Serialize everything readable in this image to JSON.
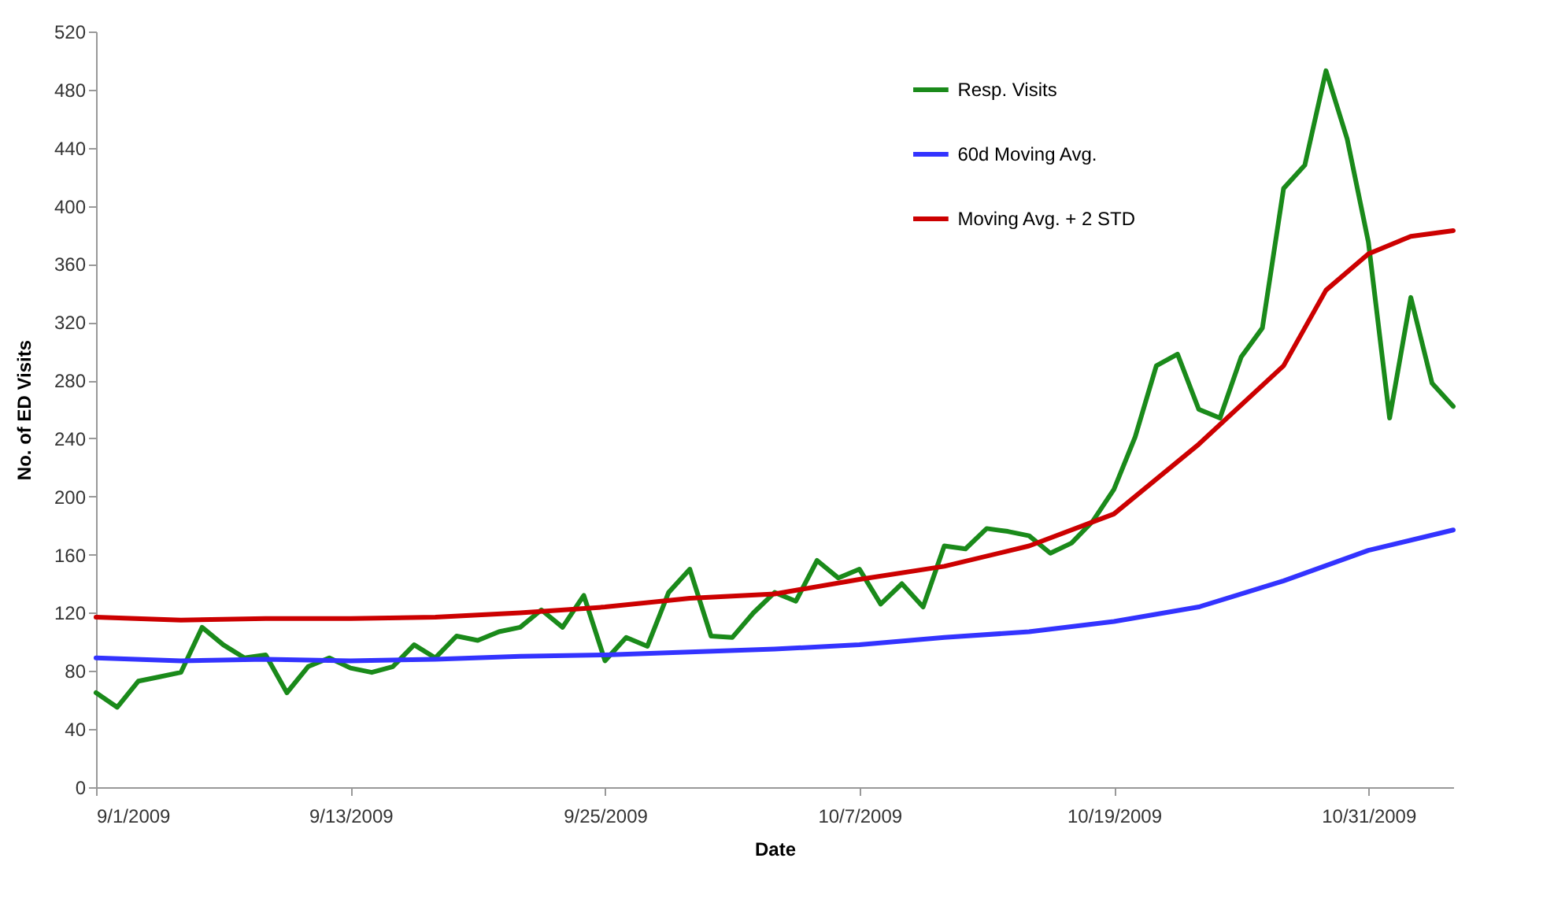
{
  "chart_data": {
    "type": "line",
    "xlabel": "Date",
    "ylabel": "No. of ED Visits",
    "xlim": [
      "2009-09-01",
      "2009-11-04"
    ],
    "ylim": [
      0,
      520
    ],
    "xticks": [
      {
        "value": "2009-09-01",
        "label": "9/1/2009"
      },
      {
        "value": "2009-09-13",
        "label": "9/13/2009"
      },
      {
        "value": "2009-09-25",
        "label": "9/25/2009"
      },
      {
        "value": "2009-10-07",
        "label": "10/7/2009"
      },
      {
        "value": "2009-10-19",
        "label": "10/19/2009"
      },
      {
        "value": "2009-10-31",
        "label": "10/31/2009"
      }
    ],
    "yticks": [
      0,
      40,
      80,
      120,
      160,
      200,
      240,
      280,
      320,
      360,
      400,
      440,
      480,
      520
    ],
    "grid": false,
    "legend": "top right",
    "marker": "none",
    "line_style": "solid",
    "series": [
      {
        "name": "Resp. Visits",
        "color": "#1a8a1a",
        "x": [
          "2009-09-01",
          "2009-09-02",
          "2009-09-03",
          "2009-09-04",
          "2009-09-05",
          "2009-09-06",
          "2009-09-07",
          "2009-09-08",
          "2009-09-09",
          "2009-09-10",
          "2009-09-11",
          "2009-09-12",
          "2009-09-13",
          "2009-09-14",
          "2009-09-15",
          "2009-09-16",
          "2009-09-17",
          "2009-09-18",
          "2009-09-19",
          "2009-09-20",
          "2009-09-21",
          "2009-09-22",
          "2009-09-23",
          "2009-09-24",
          "2009-09-25",
          "2009-09-26",
          "2009-09-27",
          "2009-09-28",
          "2009-09-29",
          "2009-09-30",
          "2009-10-01",
          "2009-10-02",
          "2009-10-03",
          "2009-10-04",
          "2009-10-05",
          "2009-10-06",
          "2009-10-07",
          "2009-10-08",
          "2009-10-09",
          "2009-10-10",
          "2009-10-11",
          "2009-10-12",
          "2009-10-13",
          "2009-10-14",
          "2009-10-15",
          "2009-10-16",
          "2009-10-17",
          "2009-10-18",
          "2009-10-19",
          "2009-10-20",
          "2009-10-21",
          "2009-10-22",
          "2009-10-23",
          "2009-10-24",
          "2009-10-25",
          "2009-10-26",
          "2009-10-27",
          "2009-10-28",
          "2009-10-29",
          "2009-10-30",
          "2009-10-31",
          "2009-11-01",
          "2009-11-02",
          "2009-11-03",
          "2009-11-04"
        ],
        "values": [
          65,
          55,
          73,
          76,
          79,
          110,
          98,
          89,
          91,
          65,
          83,
          89,
          82,
          79,
          83,
          98,
          89,
          104,
          101,
          107,
          110,
          122,
          110,
          132,
          87,
          103,
          97,
          134,
          150,
          104,
          103,
          120,
          134,
          128,
          156,
          144,
          150,
          126,
          140,
          124,
          166,
          164,
          178,
          176,
          173,
          161,
          168,
          183,
          205,
          241,
          290,
          298,
          260,
          254,
          296,
          316,
          412,
          428,
          493,
          446,
          375,
          254,
          337,
          278,
          262
        ]
      },
      {
        "name": "60d Moving Avg.",
        "color": "#3333ff",
        "x": [
          "2009-09-01",
          "2009-09-05",
          "2009-09-09",
          "2009-09-13",
          "2009-09-17",
          "2009-09-21",
          "2009-09-25",
          "2009-09-29",
          "2009-10-03",
          "2009-10-07",
          "2009-10-11",
          "2009-10-15",
          "2009-10-19",
          "2009-10-23",
          "2009-10-27",
          "2009-10-31",
          "2009-11-04"
        ],
        "values": [
          89,
          87,
          88,
          87,
          88,
          90,
          91,
          93,
          95,
          98,
          103,
          107,
          114,
          124,
          142,
          163,
          177
        ]
      },
      {
        "name": "Moving Avg. + 2 STD",
        "color": "#cc0000",
        "x": [
          "2009-09-01",
          "2009-09-05",
          "2009-09-09",
          "2009-09-13",
          "2009-09-17",
          "2009-09-21",
          "2009-09-25",
          "2009-09-29",
          "2009-10-03",
          "2009-10-07",
          "2009-10-11",
          "2009-10-15",
          "2009-10-19",
          "2009-10-23",
          "2009-10-27",
          "2009-10-29",
          "2009-10-31",
          "2009-11-02",
          "2009-11-04"
        ],
        "values": [
          117,
          115,
          116,
          116,
          117,
          120,
          124,
          130,
          133,
          143,
          152,
          166,
          188,
          236,
          290,
          342,
          367,
          379,
          383
        ]
      }
    ]
  }
}
